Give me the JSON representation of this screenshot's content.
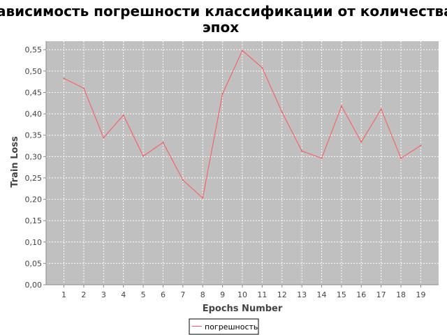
{
  "chart_data": {
    "type": "line",
    "title": "зависимость погрешности классификации от количества эпох",
    "title_lines": [
      "зависимость погрешности классификации от количества",
      "эпох"
    ],
    "xlabel": "Epochs Number",
    "ylabel": "Train Loss",
    "x": [
      1,
      2,
      3,
      4,
      5,
      6,
      7,
      8,
      9,
      10,
      11,
      12,
      13,
      14,
      15,
      16,
      17,
      18,
      19
    ],
    "x_tick_labels": [
      "1",
      "2",
      "3",
      "4",
      "5",
      "6",
      "7",
      "8",
      "9",
      "10",
      "11",
      "12",
      "13",
      "14",
      "15",
      "16",
      "17",
      "18",
      "19"
    ],
    "xlim": [
      0.1,
      19.9
    ],
    "ylim": [
      0,
      0.57
    ],
    "y_ticks": [
      0,
      0.05,
      0.1,
      0.15,
      0.2,
      0.25,
      0.3,
      0.35,
      0.4,
      0.45,
      0.5,
      0.55
    ],
    "y_tick_labels": [
      "0,00",
      "0,05",
      "0,10",
      "0,15",
      "0,20",
      "0,25",
      "0,30",
      "0,35",
      "0,40",
      "0,45",
      "0,50",
      "0,55"
    ],
    "series": [
      {
        "name": "погрешность",
        "color": "#ff5555",
        "values": [
          0.483,
          0.46,
          0.344,
          0.397,
          0.301,
          0.333,
          0.245,
          0.203,
          0.447,
          0.548,
          0.508,
          0.404,
          0.313,
          0.296,
          0.418,
          0.334,
          0.411,
          0.296,
          0.326
        ]
      }
    ],
    "grid": true,
    "plot_background": "#c0c0c0",
    "legend_position": "bottom"
  }
}
